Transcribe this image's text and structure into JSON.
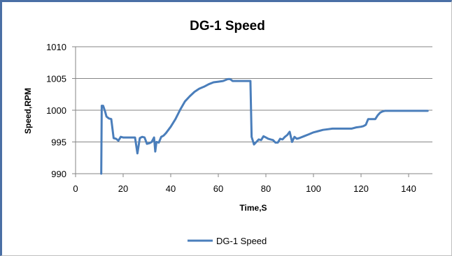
{
  "chart_data": {
    "type": "line",
    "title": "DG-1 Speed",
    "xlabel": "Time,S",
    "ylabel": "Speed,RPM",
    "xlim": [
      0,
      150
    ],
    "ylim": [
      990,
      1010
    ],
    "xticks": [
      0,
      20,
      40,
      60,
      80,
      100,
      120,
      140
    ],
    "yticks": [
      990,
      995,
      1000,
      1005,
      1010
    ],
    "grid": "horizontal",
    "legend": "bottom-center",
    "colors": {
      "series": "#4a7ebb",
      "grid": "#868686"
    },
    "series": [
      {
        "name": "DG-1 Speed",
        "x": [
          10.8,
          11.0,
          11.6,
          12.4,
          13.0,
          14.0,
          15.0,
          16.0,
          17.0,
          18.0,
          19.0,
          20.0,
          22.0,
          24.0,
          25.0,
          26.0,
          27.0,
          28.0,
          29.0,
          30.0,
          31.0,
          32.0,
          33.0,
          33.5,
          34.0,
          35.0,
          36.0,
          37.0,
          38.0,
          40.0,
          42.0,
          44.0,
          46.0,
          48.0,
          50.0,
          52.0,
          54.0,
          56.0,
          58.0,
          60.0,
          62.0,
          64.0,
          65.0,
          66.0,
          67.0,
          68.0,
          70.0,
          72.0,
          73.5,
          74.0,
          75.0,
          76.0,
          77.0,
          78.0,
          79.0,
          80.0,
          81.0,
          82.0,
          83.0,
          84.0,
          85.0,
          86.0,
          87.0,
          88.0,
          89.0,
          90.0,
          91.0,
          92.0,
          93.0,
          94.0,
          96.0,
          98.0,
          100.0,
          102.0,
          104.0,
          106.0,
          108.0,
          110.0,
          112.0,
          114.0,
          116.0,
          118.0,
          120.0,
          121.0,
          122.0,
          123.0,
          124.0,
          125.0,
          126.0,
          127.0,
          128.0,
          129.0,
          130.0,
          134.0,
          140.0,
          145.0,
          148.0
        ],
        "values": [
          990.0,
          1000.7,
          1000.7,
          999.8,
          999.0,
          998.7,
          998.6,
          995.6,
          995.5,
          995.2,
          995.8,
          995.7,
          995.7,
          995.7,
          995.7,
          993.2,
          995.6,
          995.8,
          995.7,
          994.7,
          994.8,
          995.0,
          995.7,
          993.5,
          995.0,
          994.9,
          995.8,
          996.0,
          996.4,
          997.4,
          998.6,
          1000.1,
          1001.4,
          1002.2,
          1002.9,
          1003.4,
          1003.7,
          1004.1,
          1004.4,
          1004.5,
          1004.6,
          1004.9,
          1004.9,
          1004.6,
          1004.6,
          1004.6,
          1004.6,
          1004.6,
          1004.6,
          995.8,
          994.6,
          995.0,
          995.4,
          995.3,
          995.9,
          995.7,
          995.5,
          995.4,
          995.3,
          994.9,
          994.9,
          995.5,
          995.4,
          995.8,
          996.1,
          996.6,
          995.0,
          995.8,
          995.5,
          995.6,
          995.9,
          996.2,
          996.5,
          996.7,
          996.9,
          997.0,
          997.1,
          997.1,
          997.1,
          997.1,
          997.1,
          997.3,
          997.4,
          997.5,
          997.7,
          998.6,
          998.6,
          998.6,
          998.6,
          999.2,
          999.6,
          999.8,
          999.9,
          999.9,
          999.9,
          999.9,
          999.9
        ]
      }
    ]
  }
}
